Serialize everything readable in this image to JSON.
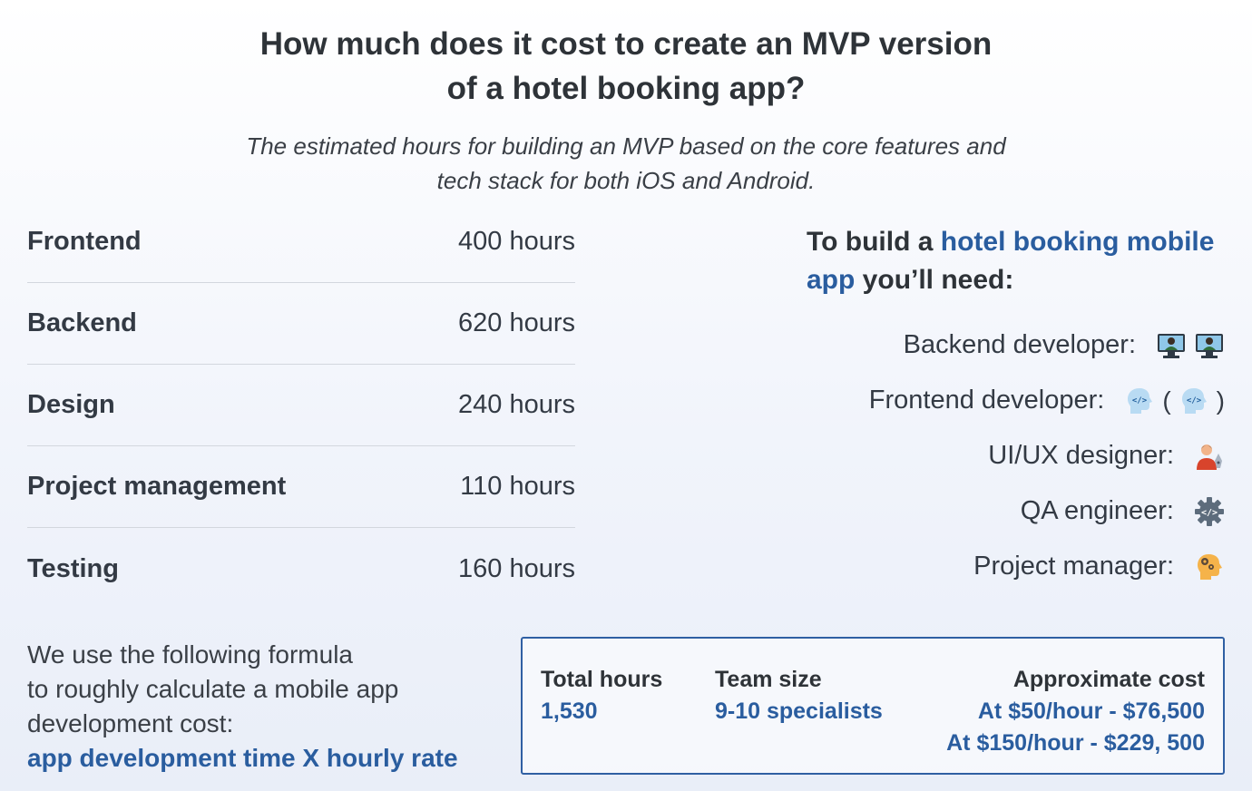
{
  "header": {
    "title_line1": "How much does it cost to create an MVP version",
    "title_line2": "of a hotel booking app?",
    "subtitle_line1": "The estimated hours for building an MVP based on the core features and",
    "subtitle_line2": "tech stack for both iOS and Android."
  },
  "hours": [
    {
      "label": "Frontend",
      "value": "400 hours"
    },
    {
      "label": "Backend",
      "value": "620 hours"
    },
    {
      "label": "Design",
      "value": "240 hours"
    },
    {
      "label": "Project management",
      "value": "110 hours"
    },
    {
      "label": "Testing",
      "value": "160 hours"
    }
  ],
  "team": {
    "intro_before": "To build a ",
    "intro_link": "hotel booking mobile app",
    "intro_after": " you’ll need:",
    "roles": [
      {
        "label": "Backend developer:",
        "icon": "backend-developer-icon"
      },
      {
        "label": "Frontend developer:",
        "icon": "frontend-developer-icon"
      },
      {
        "label": "UI/UX designer:",
        "icon": "designer-icon"
      },
      {
        "label": "QA engineer:",
        "icon": "qa-gear-icon"
      },
      {
        "label": "Project manager:",
        "icon": "manager-head-icon"
      }
    ],
    "paren_open": "(",
    "paren_close": ")"
  },
  "formula": {
    "line1": "We use the following formula",
    "line2": "to roughly calculate a mobile app",
    "line3": "development cost:",
    "expression": "app development time X hourly rate"
  },
  "summary": {
    "total_label": "Total hours",
    "total_value": "1,530",
    "team_label": "Team size",
    "team_value": "9-10 specialists",
    "cost_label": "Approximate cost",
    "cost_line1": "At $50/hour - $76,500",
    "cost_line2": "At $150/hour - $229, 500"
  },
  "colors": {
    "accent": "#2a5d9f",
    "border": "#2f5fa3",
    "text": "#333a44"
  }
}
